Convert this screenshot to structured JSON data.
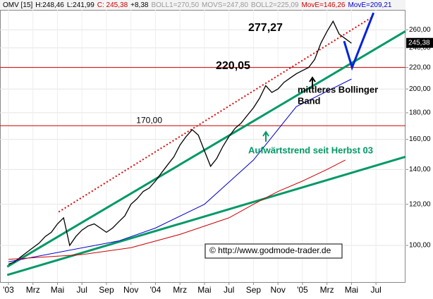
{
  "chart_data": {
    "type": "line",
    "header": [
      {
        "text": "OMV [15]",
        "color": "#000000"
      },
      {
        "text": "H:248,46",
        "color": "#000000"
      },
      {
        "text": "L:241,99",
        "color": "#000000"
      },
      {
        "text": "C: 245,38",
        "color": "#cc0000"
      },
      {
        "text": "+8,38",
        "color": "#000000"
      },
      {
        "text": "BOLL1=270,50",
        "color": "#999999"
      },
      {
        "text": "MOVS=247,80",
        "color": "#999999"
      },
      {
        "text": "BOLL2=225,09",
        "color": "#999999"
      },
      {
        "text": "MovE=146,26",
        "color": "#cc0000"
      },
      {
        "text": "MovE=209,21",
        "color": "#0000cc"
      }
    ],
    "log_y": true,
    "grid": true,
    "xlim": [
      -0.69,
      32.41
    ],
    "ylim": [
      85,
      284
    ],
    "xticks": [
      {
        "value": 0,
        "label": "'03"
      },
      {
        "value": 2,
        "label": "Mrz"
      },
      {
        "value": 4,
        "label": "Mai"
      },
      {
        "value": 6,
        "label": "Jul"
      },
      {
        "value": 8,
        "label": "Sep"
      },
      {
        "value": 10,
        "label": "Nov"
      },
      {
        "value": 12,
        "label": "'04"
      },
      {
        "value": 14,
        "label": "Mrz"
      },
      {
        "value": 16,
        "label": "Mai"
      },
      {
        "value": 18,
        "label": "Jul"
      },
      {
        "value": 20,
        "label": "Sep"
      },
      {
        "value": 22,
        "label": "Nov"
      },
      {
        "value": 24,
        "label": "'05"
      },
      {
        "value": 26,
        "label": "Mrz"
      },
      {
        "value": 28,
        "label": "Mai"
      },
      {
        "value": 30,
        "label": "Jul"
      }
    ],
    "yticks": [
      {
        "value": 100,
        "label": "100,00"
      },
      {
        "value": 120,
        "label": "120,00"
      },
      {
        "value": 140,
        "label": "140,00"
      },
      {
        "value": 160,
        "label": "160,00"
      },
      {
        "value": 180,
        "label": "180,00"
      },
      {
        "value": 200,
        "label": "200,00"
      },
      {
        "value": 220,
        "label": "220,00"
      },
      {
        "value": 240,
        "label": "240,00"
      },
      {
        "value": 260,
        "label": "260,00"
      }
    ],
    "series": [
      {
        "color": "#000000",
        "x": [
          0,
          0.5,
          1,
          1.5,
          2,
          2.5,
          3,
          3.5,
          4,
          4.5,
          5,
          5.5,
          6,
          6.5,
          7,
          7.5,
          8,
          8.5,
          9,
          9.5,
          10,
          10.5,
          11,
          11.5,
          12,
          12.5,
          13,
          13.5,
          14,
          14.5,
          15,
          15.5,
          16,
          16.5,
          17,
          17.5,
          18,
          18.5,
          19,
          19.5,
          20,
          20.5,
          21,
          21.5,
          22,
          22.5,
          23,
          23.5,
          24,
          24.5,
          25,
          25.5,
          26,
          26.5,
          27,
          27.5,
          28
        ],
        "values": [
          92,
          93,
          95,
          97,
          99,
          101,
          104,
          106,
          110,
          113,
          100,
          104,
          107,
          109,
          110,
          108,
          106,
          108,
          111,
          114,
          120,
          123,
          127,
          129,
          133,
          138,
          143,
          148,
          156,
          162,
          167,
          163,
          152,
          142,
          147,
          155,
          162,
          168,
          172,
          178,
          184,
          192,
          203,
          197,
          200,
          206,
          210,
          214,
          217,
          220,
          228,
          245,
          258,
          270,
          255,
          250,
          245
        ]
      },
      {
        "color": "#0000cc",
        "x": [
          0,
          9,
          12,
          16,
          20,
          23.5,
          28
        ],
        "values": [
          93,
          102,
          108,
          120,
          146,
          185,
          209
        ]
      },
      {
        "color": "#cc0000",
        "x": [
          0,
          6,
          10,
          14,
          18,
          20,
          22,
          24,
          26,
          27.5
        ],
        "values": [
          94,
          96,
          99,
          105,
          113,
          120,
          127,
          133,
          140,
          146
        ]
      }
    ],
    "hlines": [
      {
        "value": 220.05,
        "label": "220,05"
      },
      {
        "value": 170,
        "label": "170,00"
      }
    ],
    "peak": {
      "value": 277.27,
      "label": "277,27"
    },
    "last_price": {
      "value": 245.38,
      "label": "245,38"
    },
    "trendlines": [
      {
        "color": "#009966",
        "x": [
          -0.1,
          32.41
        ],
        "values": [
          91,
          258.4
        ]
      },
      {
        "color": "#009966",
        "x": [
          -0.1,
          32.41
        ],
        "values": [
          87.7,
          148.1
        ]
      },
      {
        "color": "#dd0000",
        "x": [
          4.1,
          29.6
        ],
        "values": [
          116,
          274.2
        ]
      },
      {
        "color": "#0022dd",
        "x": [
          27.4,
          28.05,
          29.8
        ],
        "values": [
          247.3,
          220.05,
          280.3
        ]
      }
    ],
    "annotations": {
      "bollinger": [
        "mittleres Bollinger",
        "Band"
      ],
      "trend": "Aufwärtstrend seit Herbst 03",
      "copyright": "© http://www.godmode-trader.de"
    }
  }
}
